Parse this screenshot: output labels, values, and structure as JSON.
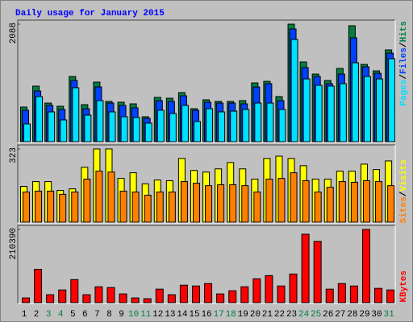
{
  "title": "Daily usage for January 2015",
  "chart_data": [
    {
      "type": "bar",
      "ylim": [
        0,
        2088
      ],
      "yticks": [
        2088
      ],
      "legend_separator": "/",
      "series": [
        {
          "name": "Hits",
          "color": "#008040",
          "values": [
            615,
            987,
            686,
            629,
            1158,
            658,
            1058,
            715,
            701,
            672,
            443,
            787,
            772,
            872,
            586,
            744,
            715,
            715,
            729,
            1044,
            1072,
            801,
            2088,
            1416,
            1201,
            1087,
            1301,
            2060,
            1373,
            1258,
            1630
          ]
        },
        {
          "name": "Files",
          "color": "#0040ff",
          "values": [
            558,
            901,
            644,
            572,
            1087,
            586,
            972,
            686,
            644,
            601,
            415,
            729,
            715,
            815,
            558,
            701,
            686,
            686,
            672,
            972,
            1030,
            729,
            2002,
            1316,
            1158,
            1030,
            1201,
            1845,
            1330,
            1215,
            1573
          ]
        },
        {
          "name": "Pages",
          "color": "#00e0ff",
          "values": [
            315,
            801,
            529,
            386,
            958,
            472,
            729,
            529,
            443,
            429,
            329,
            558,
            500,
            644,
            358,
            586,
            529,
            543,
            572,
            686,
            686,
            572,
            1816,
            1115,
            1001,
            987,
            1030,
            1402,
            1158,
            1115,
            1473
          ]
        }
      ]
    },
    {
      "type": "bar",
      "ylim": [
        0,
        323
      ],
      "yticks": [
        323
      ],
      "legend_separator": "/",
      "series": [
        {
          "name": "Visits",
          "color": "#ffff00",
          "values": [
            158,
            179,
            179,
            140,
            147,
            242,
            323,
            323,
            193,
            218,
            169,
            186,
            183,
            281,
            228,
            221,
            235,
            263,
            235,
            190,
            281,
            291,
            281,
            249,
            190,
            190,
            225,
            225,
            256,
            232,
            270
          ]
        },
        {
          "name": "Sites",
          "color": "#ff8000",
          "values": [
            133,
            137,
            137,
            123,
            133,
            190,
            225,
            221,
            137,
            133,
            119,
            133,
            133,
            179,
            172,
            161,
            165,
            165,
            161,
            133,
            190,
            193,
            218,
            183,
            133,
            154,
            179,
            176,
            183,
            179,
            161
          ]
        }
      ]
    },
    {
      "type": "bar",
      "ylim": [
        0,
        210390
      ],
      "yticks": [
        210390
      ],
      "categories": [
        "1",
        "2",
        "3",
        "4",
        "5",
        "6",
        "7",
        "8",
        "9",
        "10",
        "11",
        "12",
        "13",
        "14",
        "15",
        "16",
        "17",
        "18",
        "19",
        "20",
        "21",
        "22",
        "23",
        "24",
        "25",
        "26",
        "27",
        "28",
        "29",
        "30",
        "31"
      ],
      "category_colors": [
        "#000000",
        "#000000",
        "#008040",
        "#008040",
        "#000000",
        "#000000",
        "#000000",
        "#000000",
        "#000000",
        "#008040",
        "#008040",
        "#000000",
        "#000000",
        "#000000",
        "#000000",
        "#000000",
        "#008040",
        "#008040",
        "#000000",
        "#000000",
        "#000000",
        "#000000",
        "#000000",
        "#008040",
        "#008040",
        "#000000",
        "#000000",
        "#000000",
        "#000000",
        "#000000",
        "#008040"
      ],
      "series": [
        {
          "name": "KBytes",
          "color": "#ff0000",
          "values": [
            13700,
            96000,
            22900,
            36600,
            66300,
            22900,
            45700,
            43500,
            25200,
            13700,
            11400,
            38900,
            22900,
            50300,
            48000,
            54900,
            25200,
            34300,
            45700,
            68600,
            77800,
            48000,
            82300,
            196700,
            176100,
            38900,
            54900,
            48000,
            210390,
            41200,
            36600
          ]
        }
      ]
    }
  ]
}
